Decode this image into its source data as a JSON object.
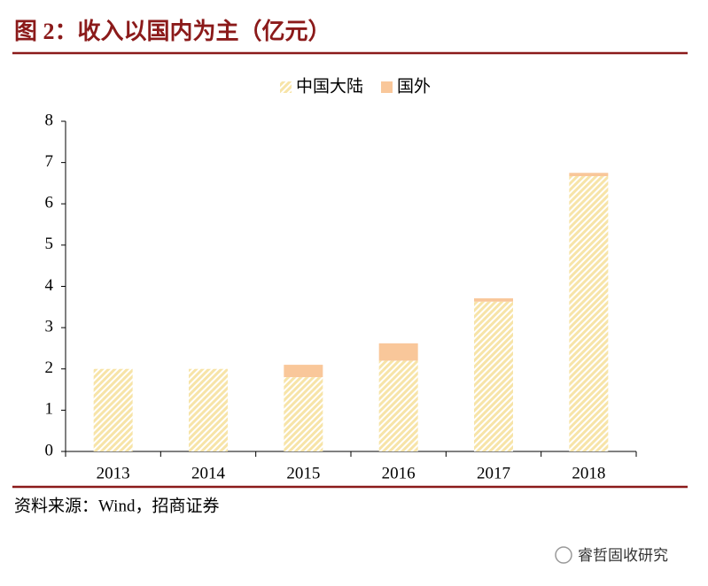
{
  "chart_data": {
    "type": "stacked-bar",
    "title": "图 2：收入以国内为主（亿元）",
    "categories": [
      "2013",
      "2014",
      "2015",
      "2016",
      "2017",
      "2018"
    ],
    "series": [
      {
        "name": "中国大陆",
        "color": "#f7e4a8",
        "values": [
          2.0,
          2.0,
          1.8,
          2.2,
          3.63,
          6.67
        ]
      },
      {
        "name": "国外",
        "color": "#f9c79a",
        "values": [
          0,
          0,
          0.3,
          0.42,
          0.08,
          0.08
        ]
      }
    ],
    "ylim": [
      0,
      8
    ],
    "yticks": [
      0,
      1,
      2,
      3,
      4,
      5,
      6,
      7,
      8
    ],
    "source": "资料来源：Wind，招商证券",
    "watermark": "睿哲固收研究"
  }
}
